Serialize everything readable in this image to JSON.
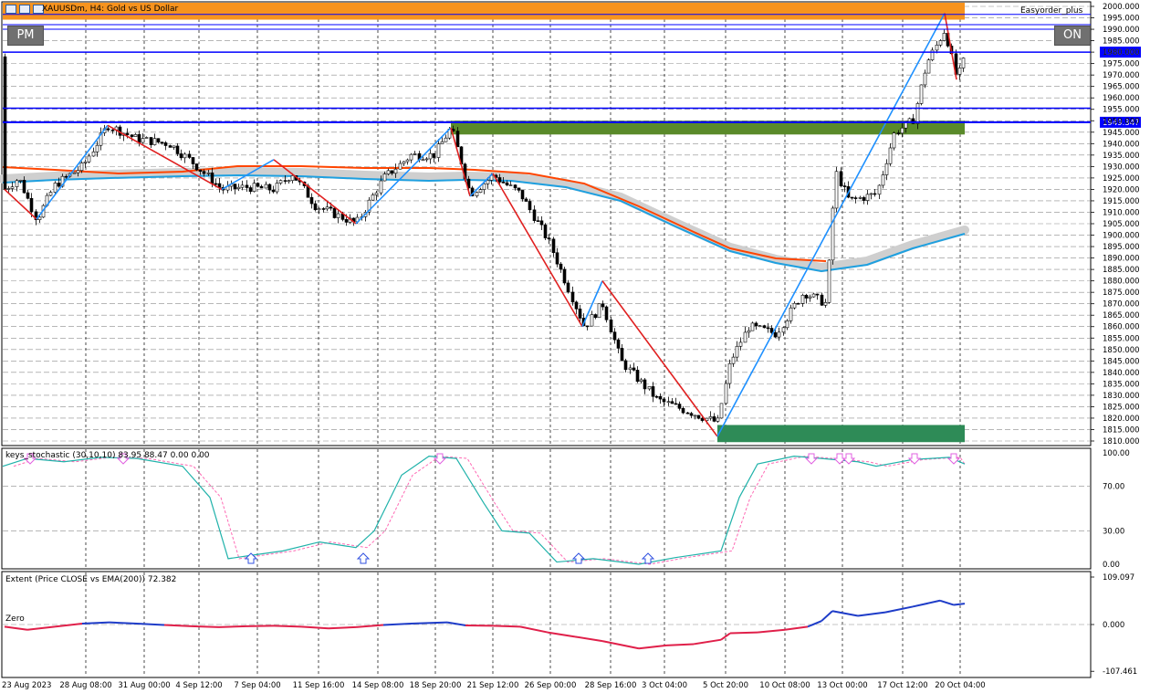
{
  "header": {
    "symbol_title": "XAUUSDm, H4:  Gold vs US Dollar",
    "ea_name": "Easyorder_plus"
  },
  "buttons": {
    "pm": "PM",
    "on": "ON"
  },
  "price_axis": {
    "labels": [
      "2000.000",
      "1995.000",
      "1990.000",
      "1985.000",
      "1980.000",
      "1975.000",
      "1970.000",
      "1965.000",
      "1960.000",
      "1955.000",
      "1950.000",
      "1945.000",
      "1940.000",
      "1935.000",
      "1930.000",
      "1925.000",
      "1920.000",
      "1915.000",
      "1910.000",
      "1905.000",
      "1900.000",
      "1895.000",
      "1890.000",
      "1885.000",
      "1880.000",
      "1875.000",
      "1870.000",
      "1865.000",
      "1860.000",
      "1855.000",
      "1850.000",
      "1845.000",
      "1840.000",
      "1835.000",
      "1830.000",
      "1825.000",
      "1820.000",
      "1815.000",
      "1810.000"
    ],
    "current_price": "1949.347",
    "marked_levels": [
      "1980.000",
      "1949.347"
    ]
  },
  "time_axis": {
    "labels": [
      "23 Aug 2023",
      "28 Aug 08:00",
      "31 Aug 00:00",
      "4 Sep 12:00",
      "7 Sep 04:00",
      "11 Sep 16:00",
      "14 Sep 08:00",
      "18 Sep 20:00",
      "21 Sep 12:00",
      "26 Sep 00:00",
      "28 Sep 16:00",
      "3 Oct 04:00",
      "5 Oct 20:00",
      "10 Oct 08:00",
      "13 Oct 00:00",
      "17 Oct 12:00",
      "20 Oct 04:00"
    ]
  },
  "stochastic": {
    "label": "keys_stochastic (30,10,10) 83.95 88.47 0.00 0.00",
    "levels": [
      "100.00",
      "70.00",
      "30.00",
      "0.00"
    ]
  },
  "extent": {
    "label": "Extent (Price CLOSE vs EMA(200)) 72.382",
    "zero_label": "Zero",
    "levels": [
      "109.097",
      "0.000",
      "-107.461"
    ]
  },
  "colors": {
    "resistance_zone": "#f7931e",
    "support_zone_upper": "#5a8a2a",
    "support_zone_lower": "#2e8b57",
    "level_line": "#0000ff",
    "zigzag_up": "#1e90ff",
    "zigzag_down": "#e02020",
    "ema_fast": "#ff4500",
    "ema_slow": "#1ea0e0",
    "stoch_main": "#20b2aa",
    "stoch_signal": "#ff69b4",
    "extent_pos": "#1e3cc8",
    "extent_neg": "#e0204a"
  }
}
